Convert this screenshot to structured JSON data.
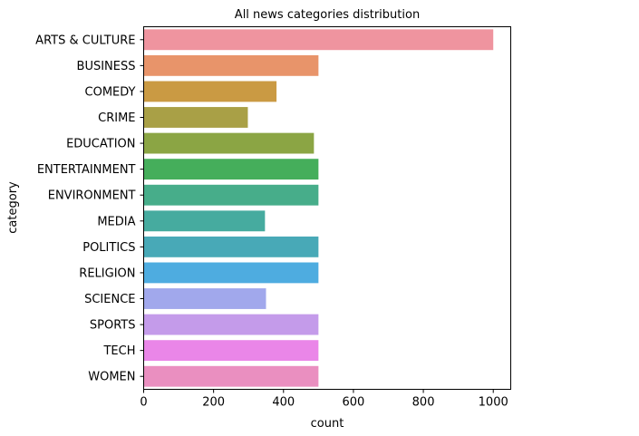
{
  "chart_data": {
    "type": "bar",
    "orientation": "horizontal",
    "title": "All news categories distribution",
    "xlabel": "count",
    "ylabel": "category",
    "categories": [
      "ARTS & CULTURE",
      "BUSINESS",
      "COMEDY",
      "CRIME",
      "EDUCATION",
      "ENTERTAINMENT",
      "ENVIRONMENT",
      "MEDIA",
      "POLITICS",
      "RELIGION",
      "SCIENCE",
      "SPORTS",
      "TECH",
      "WOMEN"
    ],
    "values": [
      1000,
      500,
      380,
      298,
      487,
      500,
      500,
      347,
      500,
      500,
      350,
      500,
      500,
      500
    ],
    "colors": [
      "#ef949f",
      "#e8946a",
      "#ca9a43",
      "#a9a046",
      "#8ba544",
      "#45ae5b",
      "#47ad8a",
      "#46ab9f",
      "#48a9b7",
      "#4eace0",
      "#a1a8ec",
      "#c49bea",
      "#ea86e8",
      "#ea8fc0"
    ],
    "xlim": [
      0,
      1050
    ],
    "xticks": [
      0,
      200,
      400,
      600,
      800,
      1000
    ],
    "grid": false
  }
}
